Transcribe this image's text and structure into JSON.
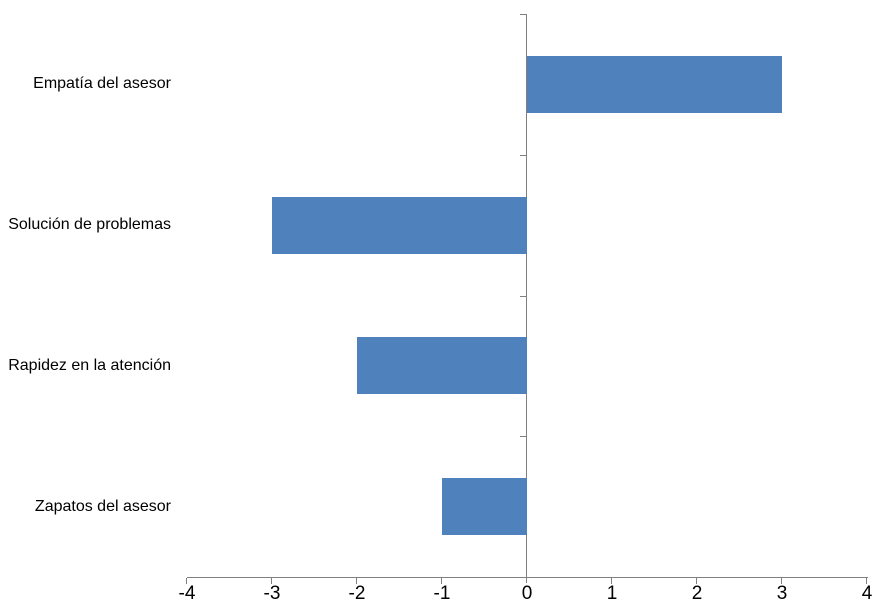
{
  "chart_data": {
    "type": "bar",
    "orientation": "horizontal",
    "title": "",
    "xlabel": "",
    "ylabel": "",
    "categories": [
      "Empatía del asesor",
      "Solución de problemas",
      "Rapidez en la atención",
      "Zapatos del asesor"
    ],
    "values": [
      3,
      -3,
      -2,
      -1
    ],
    "xlim": [
      -4,
      4
    ],
    "x_ticks": [
      "-4",
      "-3",
      "-2",
      "-1",
      "0",
      "1",
      "2",
      "3",
      "4"
    ],
    "x_tick_values": [
      -4,
      -3,
      -2,
      -1,
      0,
      1,
      2,
      3,
      4
    ],
    "grid": false,
    "legend": false,
    "bar_color": "#4F81BD",
    "axis_color": "#808080",
    "label_color": "#000000"
  }
}
